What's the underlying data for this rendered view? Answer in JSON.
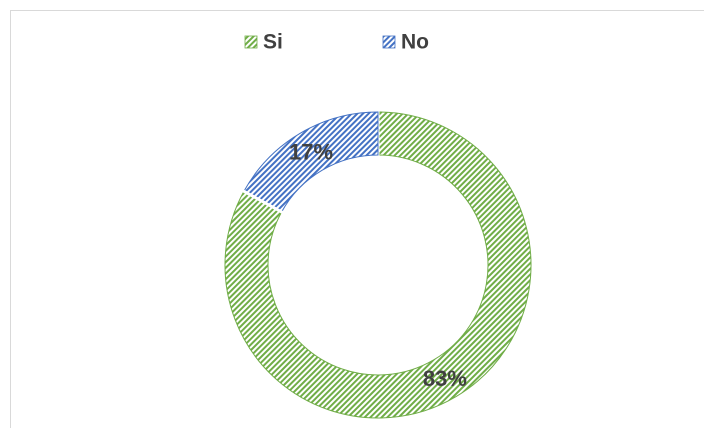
{
  "chart_data": {
    "type": "donut",
    "categories": [
      "Si",
      "No"
    ],
    "values": [
      83,
      17
    ],
    "value_labels": [
      "83%",
      "17%"
    ],
    "colors": [
      "#70ad47",
      "#4472c4"
    ],
    "legend": "top"
  }
}
